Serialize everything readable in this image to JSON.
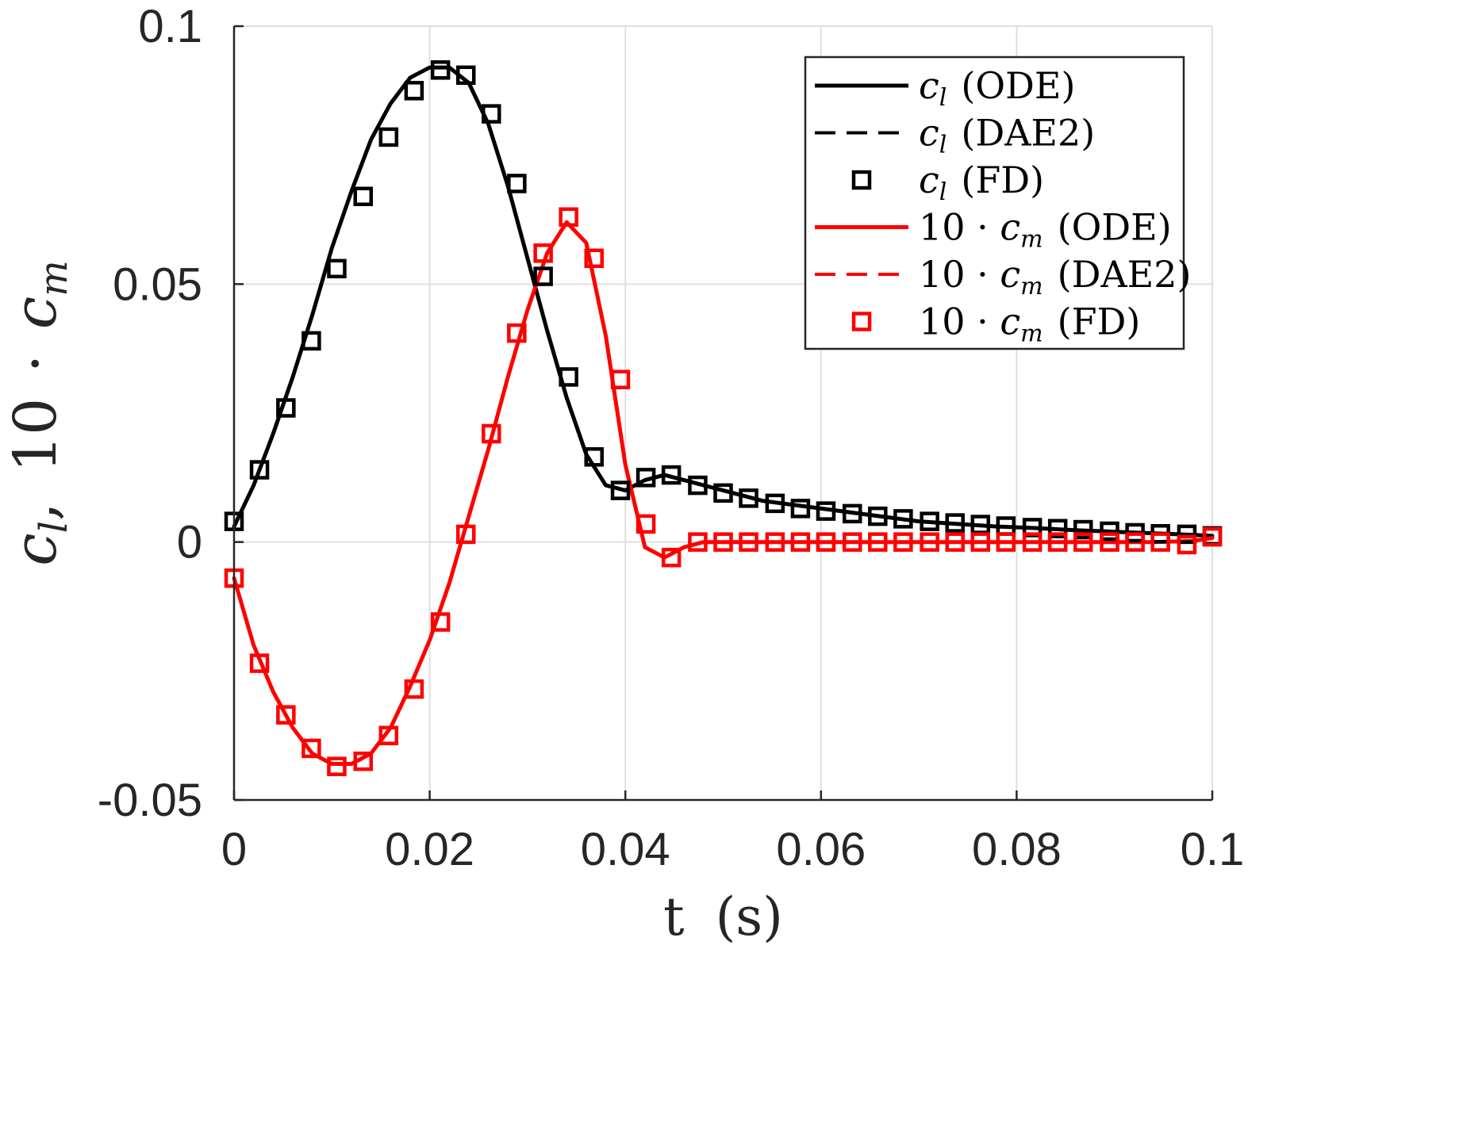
{
  "chart_data": {
    "type": "line",
    "title": "",
    "xlabel": "t (s)",
    "ylabel": "c_l, 10 · c_m",
    "ylabel_parts": {
      "c": "c",
      "l": "l",
      "sep": ",",
      "ten": "10",
      "dot": "·",
      "cm": "c",
      "m": "m"
    },
    "xlabel_parts": {
      "t": "t",
      "unit": "(s)"
    },
    "xlim": [
      0,
      0.1
    ],
    "ylim": [
      -0.05,
      0.1
    ],
    "xticks": [
      0,
      0.02,
      0.04,
      0.06,
      0.08,
      0.1
    ],
    "xtick_labels": [
      "0",
      "0.02",
      "0.04",
      "0.06",
      "0.08",
      "0.1"
    ],
    "yticks": [
      -0.05,
      0,
      0.05,
      0.1
    ],
    "ytick_labels": [
      "-0.05",
      "0",
      "0.05",
      "0.1"
    ],
    "grid": true,
    "legend_position": "top-right",
    "colors": {
      "cl": "#000000",
      "cm": "#ff0000",
      "grid": "#dfdfdf",
      "axis": "#262626"
    },
    "curve_x": [
      0,
      0.002,
      0.004,
      0.006,
      0.008,
      0.01,
      0.012,
      0.014,
      0.016,
      0.018,
      0.02,
      0.022,
      0.024,
      0.026,
      0.028,
      0.03,
      0.032,
      0.034,
      0.036,
      0.038,
      0.04,
      0.042,
      0.044,
      0.046,
      0.048,
      0.05,
      0.054,
      0.058,
      0.062,
      0.066,
      0.07,
      0.074,
      0.078,
      0.082,
      0.086,
      0.09,
      0.094,
      0.098,
      0.1
    ],
    "series": [
      {
        "name": "c_l (ODE)",
        "style": "solid",
        "color": "#000000",
        "legend": {
          "sym": "c",
          "sub": "l",
          "scale": "",
          "method": "(ODE)"
        },
        "y": [
          0.003,
          0.011,
          0.021,
          0.032,
          0.044,
          0.057,
          0.068,
          0.078,
          0.085,
          0.09,
          0.092,
          0.092,
          0.089,
          0.081,
          0.069,
          0.055,
          0.041,
          0.028,
          0.017,
          0.011,
          0.01,
          0.012,
          0.013,
          0.012,
          0.011,
          0.01,
          0.008,
          0.007,
          0.006,
          0.005,
          0.004,
          0.0035,
          0.003,
          0.0027,
          0.0023,
          0.002,
          0.0017,
          0.0014,
          0.0012
        ]
      },
      {
        "name": "c_l (DAE2)",
        "style": "dashed",
        "color": "#000000",
        "legend": {
          "sym": "c",
          "sub": "l",
          "scale": "",
          "method": "(DAE2)"
        },
        "y": [
          0.003,
          0.011,
          0.021,
          0.032,
          0.044,
          0.057,
          0.068,
          0.078,
          0.085,
          0.09,
          0.092,
          0.092,
          0.089,
          0.081,
          0.069,
          0.055,
          0.041,
          0.028,
          0.017,
          0.011,
          0.01,
          0.012,
          0.013,
          0.012,
          0.011,
          0.01,
          0.008,
          0.007,
          0.006,
          0.005,
          0.004,
          0.0035,
          0.003,
          0.0027,
          0.0023,
          0.002,
          0.0017,
          0.0014,
          0.0012
        ]
      },
      {
        "name": "10·c_m (ODE)",
        "style": "solid",
        "color": "#ff0000",
        "legend": {
          "sym": "c",
          "sub": "m",
          "scale": "10 · ",
          "method": "(ODE)"
        },
        "y": [
          -0.007,
          -0.02,
          -0.029,
          -0.036,
          -0.041,
          -0.043,
          -0.043,
          -0.041,
          -0.036,
          -0.028,
          -0.019,
          -0.008,
          0.005,
          0.018,
          0.032,
          0.045,
          0.056,
          0.062,
          0.058,
          0.04,
          0.015,
          -0.001,
          -0.003,
          -0.001,
          0.0,
          0.0,
          0.0,
          0.0,
          0.0,
          0.0,
          0.0,
          0.0,
          0.0,
          0.0,
          0.0,
          0.0,
          0.0,
          0.0002,
          0.0008
        ]
      },
      {
        "name": "10·c_m (DAE2)",
        "style": "dashed",
        "color": "#ff0000",
        "legend": {
          "sym": "c",
          "sub": "m",
          "scale": "10 · ",
          "method": "(DAE2)"
        },
        "y": [
          -0.007,
          -0.02,
          -0.029,
          -0.036,
          -0.041,
          -0.043,
          -0.043,
          -0.041,
          -0.036,
          -0.028,
          -0.019,
          -0.008,
          0.005,
          0.018,
          0.032,
          0.045,
          0.056,
          0.062,
          0.058,
          0.04,
          0.015,
          -0.001,
          -0.003,
          -0.001,
          0.0,
          0.0,
          0.0,
          0.0,
          0.0,
          0.0,
          0.0,
          0.0,
          0.0,
          0.0,
          0.0,
          0.0,
          0.0,
          0.0002,
          0.0008
        ]
      }
    ],
    "markers": [
      {
        "name": "c_l (FD)",
        "marker": "square",
        "color": "#000000",
        "legend": {
          "sym": "c",
          "sub": "l",
          "scale": "",
          "method": "(FD)"
        },
        "x": [
          0.0,
          0.0026,
          0.0053,
          0.0079,
          0.0105,
          0.0132,
          0.0158,
          0.0184,
          0.0211,
          0.0237,
          0.0263,
          0.0289,
          0.0316,
          0.0342,
          0.0368,
          0.0395,
          0.0421,
          0.0447,
          0.0474,
          0.05,
          0.0526,
          0.0553,
          0.0579,
          0.0605,
          0.0632,
          0.0658,
          0.0684,
          0.0711,
          0.0737,
          0.0763,
          0.0789,
          0.0816,
          0.0842,
          0.0868,
          0.0895,
          0.0921,
          0.0947,
          0.0974,
          0.1
        ],
        "y": [
          0.004,
          0.014,
          0.026,
          0.039,
          0.053,
          0.067,
          0.0785,
          0.0875,
          0.0915,
          0.0905,
          0.083,
          0.0695,
          0.0515,
          0.032,
          0.0165,
          0.01,
          0.0125,
          0.013,
          0.011,
          0.0095,
          0.0085,
          0.0075,
          0.0065,
          0.006,
          0.0055,
          0.005,
          0.0045,
          0.004,
          0.0037,
          0.0034,
          0.0031,
          0.0028,
          0.0026,
          0.0024,
          0.0021,
          0.0018,
          0.0016,
          0.0015,
          0.0012
        ]
      },
      {
        "name": "10·c_m (FD)",
        "marker": "square",
        "color": "#ff0000",
        "legend": {
          "sym": "c",
          "sub": "m",
          "scale": "10 · ",
          "method": "(FD)"
        },
        "x": [
          0.0,
          0.0026,
          0.0053,
          0.0079,
          0.0105,
          0.0132,
          0.0158,
          0.0184,
          0.0211,
          0.0237,
          0.0263,
          0.0289,
          0.0316,
          0.0342,
          0.0368,
          0.0395,
          0.0421,
          0.0447,
          0.0474,
          0.05,
          0.0526,
          0.0553,
          0.0579,
          0.0605,
          0.0632,
          0.0658,
          0.0684,
          0.0711,
          0.0737,
          0.0763,
          0.0789,
          0.0816,
          0.0842,
          0.0868,
          0.0895,
          0.0921,
          0.0947,
          0.0974,
          0.1
        ],
        "y": [
          -0.007,
          -0.0235,
          -0.0335,
          -0.04,
          -0.0435,
          -0.0425,
          -0.0375,
          -0.0285,
          -0.0155,
          0.0015,
          0.021,
          0.0405,
          0.056,
          0.063,
          0.055,
          0.0315,
          0.0035,
          -0.003,
          0.0,
          0.0,
          0.0,
          0.0,
          0.0,
          0.0,
          0.0,
          0.0,
          0.0,
          0.0,
          0.0,
          0.0,
          0.0,
          0.0,
          0.0,
          0.0,
          0.0,
          0.0,
          0.0,
          -0.0005,
          0.001
        ]
      }
    ]
  }
}
